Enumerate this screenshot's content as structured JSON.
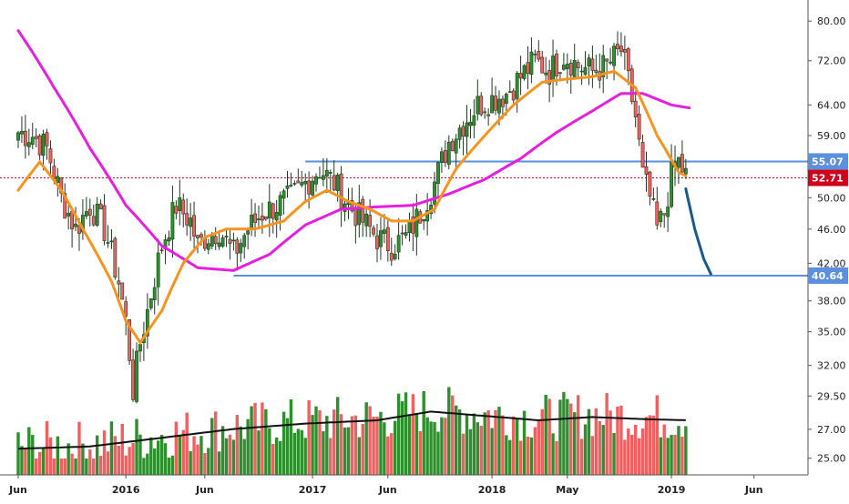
{
  "chart_data": {
    "type": "candlestick",
    "y_scale": "log",
    "ylim": [
      24.5,
      83
    ],
    "y_ticks": [
      "80.00",
      "72.00",
      "64.00",
      "59.00",
      "55.00",
      "50.00",
      "46.00",
      "42.00",
      "38.00",
      "35.00",
      "32.00",
      "29.50",
      "27.00",
      "25.00"
    ],
    "x_ticks": [
      "Jun",
      "2016",
      "Jun",
      "2017",
      "Jun",
      "2018",
      "May",
      "2019",
      "Jun"
    ],
    "x_tick_weeks": [
      0,
      30,
      52,
      82,
      103,
      132,
      153,
      182,
      205
    ],
    "colors": {
      "up": "#2f8f2f",
      "down": "#f06060",
      "ma_fast": "#f7931e",
      "ma_slow": "#e61ee0",
      "level_line": "#5b8fe0",
      "price_line": "#d0021b",
      "projection": "#1a5a8a",
      "volume_ma": "#111111",
      "axis": "#555555"
    },
    "levels": [
      {
        "label": "55.07",
        "value": 55.07
      },
      {
        "label": "40.64",
        "value": 40.64
      }
    ],
    "last_price": {
      "label": "52.71",
      "value": 52.71
    },
    "projection": [
      [
        186,
        51.2
      ],
      [
        188.5,
        46.0
      ],
      [
        191,
        42.5
      ],
      [
        193,
        40.8
      ]
    ],
    "ohlc_anchor_weeks": [
      0,
      4,
      8,
      12,
      16,
      20,
      24,
      28,
      30,
      32,
      34,
      36,
      40,
      44,
      48,
      50,
      52,
      56,
      60,
      64,
      68,
      72,
      76,
      80,
      82,
      84,
      88,
      92,
      96,
      100,
      104,
      108,
      112,
      116,
      120,
      124,
      128,
      132,
      136,
      140,
      144,
      148,
      152,
      156,
      160,
      164,
      168,
      170,
      172,
      174,
      176,
      178,
      180,
      182,
      184,
      186
    ],
    "close_anchor_values": [
      59.5,
      59,
      57,
      50,
      46,
      49,
      46,
      40,
      36,
      30,
      34,
      37,
      44,
      49,
      47,
      44,
      45,
      46,
      43,
      46,
      48,
      49,
      50,
      52,
      53,
      54,
      52,
      49,
      47,
      45,
      44,
      45,
      48,
      52,
      58,
      61,
      64,
      65,
      66,
      69,
      72,
      70,
      73,
      71,
      70,
      71,
      74,
      68,
      62,
      53,
      50,
      46,
      48,
      53,
      55,
      53
    ],
    "ma_fast_anchors": [
      [
        0,
        51
      ],
      [
        6,
        55
      ],
      [
        12,
        51
      ],
      [
        18,
        46
      ],
      [
        26,
        40
      ],
      [
        30,
        36
      ],
      [
        34,
        34
      ],
      [
        40,
        37
      ],
      [
        46,
        42
      ],
      [
        52,
        45
      ],
      [
        58,
        46
      ],
      [
        66,
        46
      ],
      [
        74,
        47
      ],
      [
        80,
        49.5
      ],
      [
        86,
        51
      ],
      [
        92,
        49.5
      ],
      [
        98,
        48.5
      ],
      [
        104,
        47
      ],
      [
        110,
        47
      ],
      [
        116,
        48.5
      ],
      [
        122,
        54
      ],
      [
        130,
        59
      ],
      [
        138,
        64
      ],
      [
        146,
        68
      ],
      [
        152,
        68.5
      ],
      [
        160,
        69
      ],
      [
        166,
        70
      ],
      [
        172,
        67
      ],
      [
        178,
        59
      ],
      [
        184,
        53.5
      ],
      [
        186,
        53
      ]
    ],
    "ma_slow_anchors": [
      [
        0,
        78
      ],
      [
        10,
        67
      ],
      [
        20,
        57
      ],
      [
        30,
        49
      ],
      [
        40,
        44
      ],
      [
        50,
        41.5
      ],
      [
        60,
        41.2
      ],
      [
        70,
        43
      ],
      [
        80,
        46.5
      ],
      [
        90,
        48.5
      ],
      [
        100,
        48.8
      ],
      [
        110,
        49
      ],
      [
        120,
        50.5
      ],
      [
        130,
        52.5
      ],
      [
        140,
        55.5
      ],
      [
        150,
        59.5
      ],
      [
        160,
        63
      ],
      [
        168,
        66
      ],
      [
        174,
        66
      ],
      [
        182,
        64
      ],
      [
        187,
        63.5
      ]
    ],
    "volume_ma_anchors": [
      [
        0,
        0.24
      ],
      [
        20,
        0.26
      ],
      [
        40,
        0.34
      ],
      [
        60,
        0.42
      ],
      [
        80,
        0.47
      ],
      [
        100,
        0.5
      ],
      [
        115,
        0.58
      ],
      [
        130,
        0.54
      ],
      [
        145,
        0.5
      ],
      [
        160,
        0.53
      ],
      [
        175,
        0.51
      ],
      [
        187,
        0.5
      ]
    ]
  }
}
